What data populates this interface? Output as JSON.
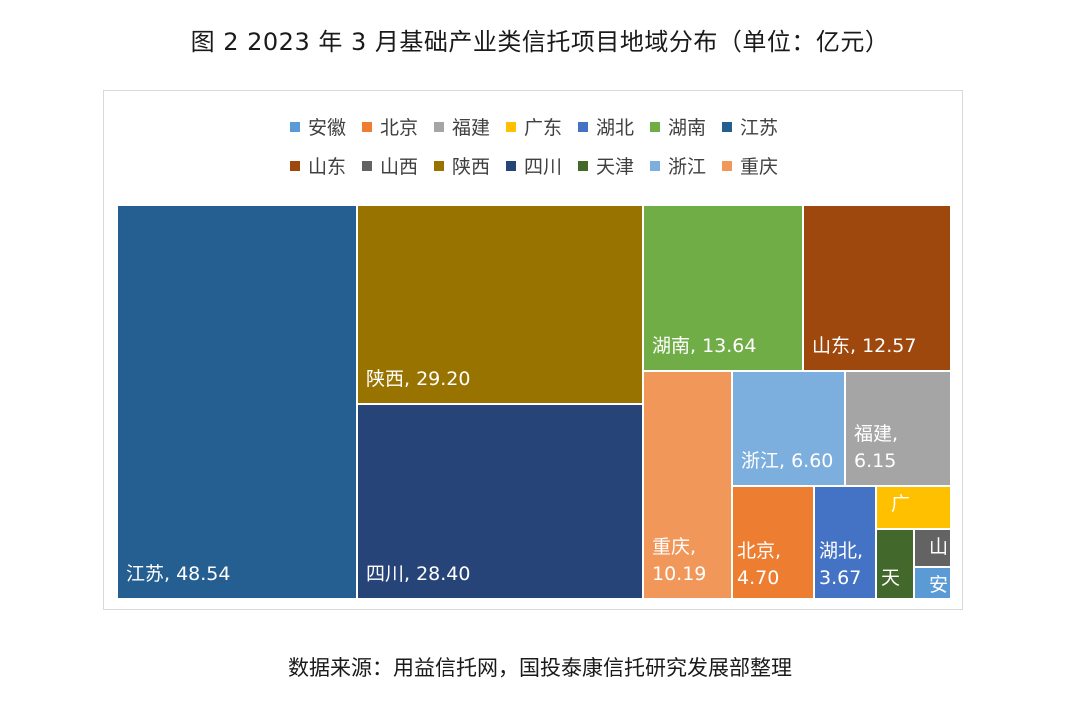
{
  "title": "图 2   2023 年 3 月基础产业类信托项目地域分布（单位：亿元）",
  "source": "数据来源：用益信托网，国投泰康信托研究发展部整理",
  "chart_data": {
    "type": "treemap",
    "title": "图 2   2023 年 3 月基础产业类信托项目地域分布（单位：亿元）",
    "unit": "亿元",
    "legend": [
      {
        "name": "安徽",
        "color": "#5b9bd5"
      },
      {
        "name": "北京",
        "color": "#ed7d31"
      },
      {
        "name": "福建",
        "color": "#a5a5a5"
      },
      {
        "name": "广东",
        "color": "#ffc000"
      },
      {
        "name": "湖北",
        "color": "#4472c4"
      },
      {
        "name": "湖南",
        "color": "#70ad47"
      },
      {
        "name": "江苏",
        "color": "#255e91"
      },
      {
        "name": "山东",
        "color": "#9e480e"
      },
      {
        "name": "山西",
        "color": "#636363"
      },
      {
        "name": "陕西",
        "color": "#997300"
      },
      {
        "name": "四川",
        "color": "#264478"
      },
      {
        "name": "天津",
        "color": "#43682b"
      },
      {
        "name": "浙江",
        "color": "#7cafdd"
      },
      {
        "name": "重庆",
        "color": "#f1975a"
      }
    ],
    "items": [
      {
        "name": "江苏",
        "value": 48.54,
        "label": "江苏, 48.54"
      },
      {
        "name": "陕西",
        "value": 29.2,
        "label": "陕西, 29.20"
      },
      {
        "name": "四川",
        "value": 28.4,
        "label": "四川, 28.40"
      },
      {
        "name": "湖南",
        "value": 13.64,
        "label": "湖南, 13.64"
      },
      {
        "name": "山东",
        "value": 12.57,
        "label": "山东, 12.57"
      },
      {
        "name": "浙江",
        "value": 6.6,
        "label": "浙江, 6.60"
      },
      {
        "name": "福建",
        "value": 6.15,
        "label": "福建,\n6.15"
      },
      {
        "name": "重庆",
        "value": 10.19,
        "label": "重庆,\n10.19"
      },
      {
        "name": "北京",
        "value": 4.7,
        "label": "北京,\n4.70"
      },
      {
        "name": "湖北",
        "value": 3.67,
        "label": "湖北,\n3.67"
      },
      {
        "name": "广东",
        "label": "广"
      },
      {
        "name": "天津",
        "label": "天"
      },
      {
        "name": "山西",
        "label": "山"
      },
      {
        "name": "安徽",
        "label": "安"
      }
    ]
  }
}
